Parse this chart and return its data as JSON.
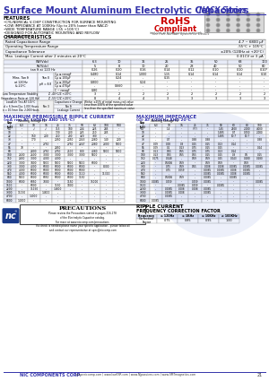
{
  "title_main": "Surface Mount Aluminum Electrolytic Capacitors",
  "title_series": "NACY Series",
  "title_color": "#3333aa",
  "bg_color": "#ffffff",
  "features": [
    "CYLINDRICAL V-CHIP CONSTRUCTION FOR SURFACE MOUNTING",
    "LOW IMPEDANCE AT 100KHz (Up to 20% lower than NACZ)",
    "WIDE TEMPERATURE RANGE (-55 +105°C)",
    "DESIGNED FOR AUTOMATIC MOUNTING AND REFLOW",
    "SOLDERING"
  ],
  "char_data": [
    [
      "Rated Capacitance Range",
      "4.7 ~ 6800 μF"
    ],
    [
      "Operating Temperature Range",
      "-55°C + 105°C"
    ],
    [
      "Capacitance Tolerance",
      "±20% (120Hz at +20°C)"
    ],
    [
      "Max. Leakage Current after 2 minutes at 20°C",
      "0.01CV or 3 μA"
    ]
  ],
  "wv_vals": [
    "6.3",
    "10",
    "16",
    "25",
    "35",
    "50",
    "63",
    "100"
  ],
  "rv_vals": [
    "5",
    "8",
    "10",
    "20",
    "28",
    "40",
    "50",
    "80"
  ],
  "tan_vals": [
    "0.26",
    "0.20",
    "0.16",
    "0.14",
    "0.12",
    "0.10",
    "0.10",
    "0.10*"
  ],
  "tan_sub_labels": [
    "Cμ ≤ronagF",
    "Cμ ≤100μF",
    "Cμ ≤200μF",
    "Cμ ≤470μF",
    "C~ronagF"
  ],
  "tan_sub_vals": [
    [
      "0.480",
      "0.14",
      "1.000",
      "1.15",
      "0.14",
      "0.14",
      "0.14",
      "0.10"
    ],
    [
      "-",
      "0.24",
      "-",
      "0.15",
      "-",
      "-",
      "-",
      "-"
    ],
    [
      "0.800",
      "-",
      "0.24",
      "-",
      "-",
      "-",
      "-",
      "-"
    ],
    [
      "-",
      "0.660",
      "-",
      "-",
      "-",
      "-",
      "-",
      "-"
    ],
    [
      "0.80",
      "-",
      "-",
      "-",
      "-",
      "-",
      "-",
      "-"
    ]
  ],
  "lt_subs": [
    "Z -40°C/Z +20°C",
    "Z -55°C/Z +20°C"
  ],
  "lt_vals": [
    [
      "3",
      "2",
      "2",
      "2",
      "2",
      "2",
      "2",
      "2"
    ],
    [
      "8",
      "4",
      "4",
      "3",
      "3",
      "3",
      "3",
      "3"
    ]
  ],
  "ripple_cap": [
    "4.7",
    "10",
    "22",
    "33",
    "47",
    "56",
    "68",
    "100",
    "150",
    "220",
    "330",
    "470",
    "560",
    "680",
    "1000",
    "1500",
    "2200",
    "3300",
    "4700",
    "6800"
  ],
  "ripple_vheaders": [
    "Cap\n(μF)",
    "6.3",
    "10",
    "16",
    "25",
    "35",
    "50",
    "63",
    "100",
    "500"
  ],
  "ripple_data": [
    [
      "-",
      "√",
      "√",
      "115",
      "180",
      "204",
      "225",
      "245",
      "-"
    ],
    [
      "-",
      "-",
      "-",
      "130",
      "200",
      "225",
      "250",
      "285",
      "-"
    ],
    [
      "-",
      "160",
      "200",
      "250",
      "290",
      "320",
      "380",
      "-",
      "-"
    ],
    [
      "-",
      "170",
      "-",
      "2050",
      "2050",
      "2043",
      "2080",
      "140",
      "200"
    ],
    [
      "-",
      "-",
      "2750",
      "-",
      "2750",
      "2247",
      "2080",
      "2300",
      "5000"
    ],
    [
      "70",
      "-",
      "-",
      "2850",
      "-",
      "-",
      "-",
      "-",
      "-"
    ],
    [
      "-",
      "2800",
      "2750",
      "2750",
      "2500",
      "800",
      "4080",
      "5000",
      "5000"
    ],
    [
      "2600",
      "2600",
      "3000",
      "3000",
      "3000",
      "3000",
      "5800",
      "-",
      "-"
    ],
    [
      "2650",
      "3000",
      "4000",
      "4000",
      "-",
      "-",
      "-",
      "-",
      "-"
    ],
    [
      "3000",
      "3400",
      "5000",
      "5000",
      "5000",
      "5800",
      "6000",
      "-",
      "-"
    ],
    [
      "3000",
      "4000",
      "6000",
      "6000",
      "6000",
      "6000",
      "-",
      "8000",
      "-"
    ],
    [
      "4000",
      "6000",
      "6000",
      "6000",
      "6000",
      "6000",
      "-",
      "-",
      "-"
    ],
    [
      "4000",
      "6000",
      "6000",
      "6000",
      "6000",
      "1110",
      "-",
      "11310",
      "-"
    ],
    [
      "5000",
      "6000",
      "6050",
      "6000",
      "6000",
      "1150",
      "-",
      "-",
      "-"
    ],
    [
      "6000",
      "6050",
      "7000",
      "-",
      "1150",
      "-",
      "15000",
      "-",
      "-"
    ],
    [
      "-",
      "6000",
      "-",
      "1150",
      "1800",
      "-",
      "-",
      "-",
      "-"
    ],
    [
      "-",
      "11150",
      "-",
      "14800",
      "-",
      "-",
      "-",
      "-",
      "-"
    ],
    [
      "11150",
      "-",
      "14800",
      "-",
      "-",
      "-",
      "-",
      "-",
      "-"
    ],
    [
      "-",
      "14000",
      "-",
      "-",
      "-",
      "-",
      "-",
      "-",
      "-"
    ],
    [
      "14000",
      "-",
      "-",
      "-",
      "-",
      "-",
      "-",
      "-",
      "-"
    ]
  ],
  "imp_vheaders": [
    "Cap\n(μF)",
    "6.3",
    "10",
    "16",
    "25",
    "35",
    "50",
    "63",
    "80",
    "100",
    "500"
  ],
  "imp_cap": [
    "4.7",
    "10",
    "22",
    "33",
    "47",
    "56",
    "68",
    "100",
    "150",
    "220",
    "330",
    "470",
    "560",
    "680",
    "1000",
    "1500",
    "2200",
    "3300",
    "4700",
    "6800"
  ],
  "imp_data": [
    [
      "-",
      "1.4",
      "-",
      "(77)",
      "-",
      "1.45",
      "2100",
      "2.000",
      "4.000",
      "-"
    ],
    [
      "-",
      "-",
      "-",
      "-",
      "-",
      "1.485",
      "0.7",
      "0.050",
      "2.000",
      "2.000"
    ],
    [
      "-",
      "-",
      "-",
      "-",
      "-",
      "1.485",
      "10.7",
      "10.7",
      "-",
      "-"
    ],
    [
      "-",
      "0.7",
      "-",
      "0.38",
      "0.38",
      "-",
      "-",
      "-",
      "0.38",
      "-"
    ],
    [
      "0.09",
      "0.08",
      "0.3",
      "0.15",
      "0.15",
      "0.13",
      "0.14",
      "-",
      "-",
      "0.14"
    ],
    [
      "0.09",
      "0.1",
      "0.13",
      "0.75",
      "0.15",
      "0.15",
      "-",
      "-",
      "0.24",
      "0.14"
    ],
    [
      "0.13",
      "0.55",
      "0.55",
      "0.75",
      "0.75",
      "0.13",
      "0.14",
      "-",
      "-",
      "-"
    ],
    [
      "0.13",
      "0.55",
      "0.55",
      "0.55",
      "0.15",
      "0.15",
      "0.3",
      "0.5",
      "0.15",
      "0.0085"
    ],
    [
      "0.075",
      "0.048",
      "-",
      "0.59",
      "0.59",
      "0.25",
      "0.043",
      "0.280",
      "0.280",
      "0.280"
    ],
    [
      "-",
      "0.5006",
      "0.59",
      "-",
      "0.59",
      "0.59",
      "-",
      "0.59",
      "-",
      "-"
    ],
    [
      "-",
      "0.75",
      "0.59",
      "0.55",
      "0.008",
      "0.008",
      "0.0085",
      "0.0085",
      "0.0085",
      "-"
    ],
    [
      "-",
      "0.75",
      "0.059",
      "-",
      "0.0085",
      "0.0085",
      "0.008",
      "0.0085",
      "-",
      "-"
    ],
    [
      "-",
      "-",
      "-",
      "-",
      "0.0085",
      "0.0085",
      "0.008",
      "0.0085",
      "-",
      "-"
    ],
    [
      "-",
      "0.5006",
      "0.59",
      "-",
      "0.0085",
      "-",
      "0.0085",
      "-",
      "-",
      "-"
    ],
    [
      "0.0085",
      "0.059",
      "-",
      "0.059",
      "0.0085",
      "-",
      "-",
      "-",
      "0.0085",
      "-"
    ],
    [
      "-",
      "-",
      "0.0085",
      "0.059",
      "-",
      "0.0085",
      "-",
      "-",
      "-",
      "-"
    ],
    [
      "-",
      "0.0085",
      "0.008",
      "0.008",
      "0.0085",
      "-",
      "-",
      "-",
      "-",
      "-"
    ],
    [
      "-",
      "0.0085",
      "0.008",
      "-",
      "0.0085",
      "-",
      "-",
      "-",
      "-",
      "-"
    ],
    [
      "-",
      "0.0085",
      "-",
      "-",
      "-",
      "-",
      "-",
      "-",
      "-",
      "-"
    ],
    [
      "0.0085",
      "-",
      "-",
      "-",
      "-",
      "-",
      "-",
      "-",
      "-",
      "-"
    ]
  ],
  "freq_headers": [
    "Frequency",
    "≤ 120Hz",
    "≤ 1KHz",
    "≤ 10KHz",
    "≥ 100KHz"
  ],
  "freq_vals": [
    "Correction\nFactor",
    "0.75",
    "0.85",
    "0.95",
    "1.00"
  ],
  "footer_company": "NIC COMPONENTS CORP.",
  "footer_web": "www.niccomp.com | www.lowESR.com | www.NJpassives.com | www.SMTmagnetics.com",
  "footer_page": "21"
}
